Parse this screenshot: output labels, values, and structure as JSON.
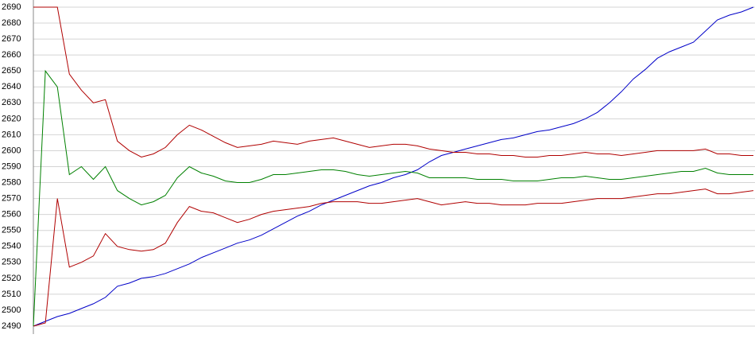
{
  "chart_data": {
    "type": "line",
    "ylim": [
      2490,
      2690
    ],
    "yticks": [
      2490,
      2500,
      2510,
      2520,
      2530,
      2540,
      2550,
      2560,
      2570,
      2580,
      2590,
      2600,
      2610,
      2620,
      2630,
      2640,
      2650,
      2660,
      2670,
      2680,
      2690
    ],
    "grid": true,
    "series": [
      {
        "color": "#0000c8",
        "values": [
          2490,
          2493,
          2496,
          2498,
          2501,
          2504,
          2508,
          2515,
          2517,
          2520,
          2521,
          2523,
          2526,
          2529,
          2533,
          2536,
          2539,
          2542,
          2544,
          2547,
          2551,
          2555,
          2559,
          2562,
          2566,
          2569,
          2572,
          2575,
          2578,
          2580,
          2583,
          2585,
          2588,
          2593,
          2597,
          2599,
          2601,
          2603,
          2605,
          2607,
          2608,
          2610,
          2612,
          2613,
          2615,
          2617,
          2620,
          2624,
          2630,
          2637,
          2645,
          2651,
          2658,
          2662,
          2665,
          2668,
          2675,
          2682,
          2685,
          2687,
          2690
        ]
      },
      {
        "color": "#b00000",
        "values": [
          2690,
          2690,
          2690,
          2648,
          2638,
          2630,
          2632,
          2606,
          2600,
          2596,
          2598,
          2602,
          2610,
          2616,
          2613,
          2609,
          2605,
          2602,
          2603,
          2604,
          2606,
          2605,
          2604,
          2606,
          2607,
          2608,
          2606,
          2604,
          2602,
          2603,
          2604,
          2604,
          2603,
          2601,
          2600,
          2599,
          2599,
          2598,
          2598,
          2597,
          2597,
          2596,
          2596,
          2597,
          2597,
          2598,
          2599,
          2598,
          2598,
          2597,
          2598,
          2599,
          2600,
          2600,
          2600,
          2600,
          2601,
          2598,
          2598,
          2597,
          2597
        ]
      },
      {
        "color": "#b00000",
        "values": [
          2490,
          2492,
          2570,
          2527,
          2530,
          2534,
          2548,
          2540,
          2538,
          2537,
          2538,
          2542,
          2555,
          2565,
          2562,
          2561,
          2558,
          2555,
          2557,
          2560,
          2562,
          2563,
          2564,
          2565,
          2567,
          2568,
          2568,
          2568,
          2567,
          2567,
          2568,
          2569,
          2570,
          2568,
          2566,
          2567,
          2568,
          2567,
          2567,
          2566,
          2566,
          2566,
          2567,
          2567,
          2567,
          2568,
          2569,
          2570,
          2570,
          2570,
          2571,
          2572,
          2573,
          2573,
          2574,
          2575,
          2576,
          2573,
          2573,
          2574,
          2575
        ]
      },
      {
        "color": "#008000",
        "values": [
          2490,
          2650,
          2640,
          2585,
          2590,
          2582,
          2590,
          2575,
          2570,
          2566,
          2568,
          2572,
          2583,
          2590,
          2586,
          2584,
          2581,
          2580,
          2580,
          2582,
          2585,
          2585,
          2586,
          2587,
          2588,
          2588,
          2587,
          2585,
          2584,
          2585,
          2586,
          2587,
          2586,
          2583,
          2583,
          2583,
          2583,
          2582,
          2582,
          2582,
          2581,
          2581,
          2581,
          2582,
          2583,
          2583,
          2584,
          2583,
          2582,
          2582,
          2583,
          2584,
          2585,
          2586,
          2587,
          2587,
          2589,
          2586,
          2585,
          2585,
          2585
        ]
      }
    ]
  }
}
